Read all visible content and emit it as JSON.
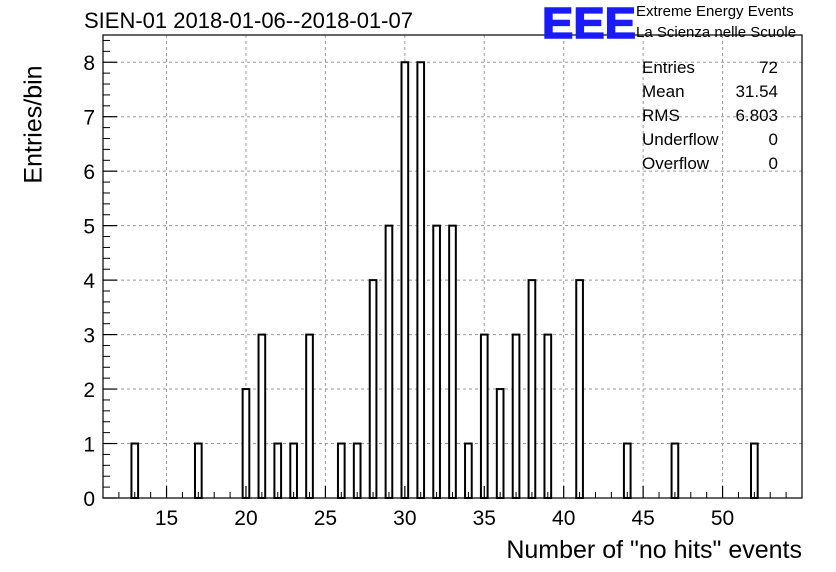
{
  "title": "SIEN-01 2018-01-06--2018-01-07",
  "logo": {
    "mark": "EEE",
    "line1": "Extreme Energy Events",
    "line2": "La Scienza nelle Scuole",
    "color": "#1a1aff"
  },
  "stats": [
    {
      "label": "Entries",
      "value": "72"
    },
    {
      "label": "Mean",
      "value": "31.54"
    },
    {
      "label": "RMS",
      "value": "6.803"
    },
    {
      "label": "Underflow",
      "value": "0"
    },
    {
      "label": "Overflow",
      "value": "0"
    }
  ],
  "chart_data": {
    "type": "bar",
    "title": "SIEN-01 2018-01-06--2018-01-07",
    "xlabel": "Number of \"no hits\" events",
    "ylabel": "Entries/bin",
    "xlim": [
      11,
      55
    ],
    "ylim": [
      0,
      8.5
    ],
    "bin_width": 1,
    "grid": true,
    "x_ticks": [
      15,
      20,
      25,
      30,
      35,
      40,
      45,
      50
    ],
    "y_ticks": [
      0,
      1,
      2,
      3,
      4,
      5,
      6,
      7,
      8
    ],
    "bins": [
      {
        "x": 13,
        "value": 1
      },
      {
        "x": 17,
        "value": 1
      },
      {
        "x": 20,
        "value": 2
      },
      {
        "x": 21,
        "value": 3
      },
      {
        "x": 22,
        "value": 1
      },
      {
        "x": 23,
        "value": 1
      },
      {
        "x": 24,
        "value": 3
      },
      {
        "x": 26,
        "value": 1
      },
      {
        "x": 27,
        "value": 1
      },
      {
        "x": 28,
        "value": 4
      },
      {
        "x": 29,
        "value": 5
      },
      {
        "x": 30,
        "value": 8
      },
      {
        "x": 31,
        "value": 8
      },
      {
        "x": 32,
        "value": 5
      },
      {
        "x": 33,
        "value": 5
      },
      {
        "x": 34,
        "value": 1
      },
      {
        "x": 35,
        "value": 3
      },
      {
        "x": 36,
        "value": 2
      },
      {
        "x": 37,
        "value": 3
      },
      {
        "x": 38,
        "value": 4
      },
      {
        "x": 39,
        "value": 3
      },
      {
        "x": 41,
        "value": 4
      },
      {
        "x": 44,
        "value": 1
      },
      {
        "x": 47,
        "value": 1
      },
      {
        "x": 52,
        "value": 1
      }
    ]
  }
}
